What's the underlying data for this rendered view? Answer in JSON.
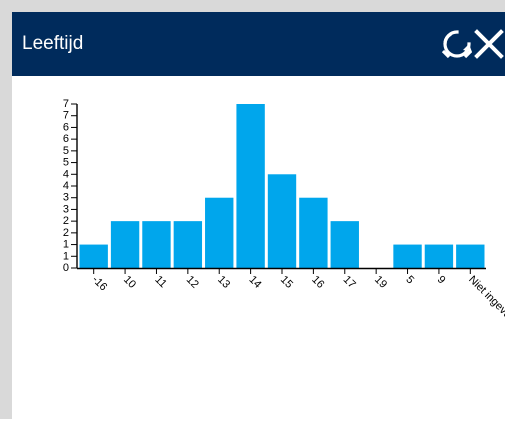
{
  "window": {
    "title": "Leeftijd",
    "accent": "#002b5c",
    "actions": [
      {
        "icon": "refresh-icon"
      },
      {
        "icon": "close-icon"
      }
    ]
  },
  "chart_data": {
    "type": "bar",
    "title": "",
    "xlabel": "",
    "ylabel": "",
    "categories": [
      "-16",
      "10",
      "11",
      "12",
      "13",
      "14",
      "15",
      "16",
      "17",
      "19",
      "5",
      "9",
      "Niet ingevuld"
    ],
    "values": [
      1,
      2,
      2,
      2,
      3,
      7,
      4,
      3,
      2,
      0,
      1,
      1,
      1
    ],
    "ylim": [
      0,
      7
    ],
    "yticks": [
      "0",
      "1",
      "1",
      "2",
      "2",
      "3",
      "3",
      "4",
      "4",
      "5",
      "5",
      "6",
      "6",
      "7",
      "7"
    ],
    "bar_color": "#00a6ec",
    "grid": false
  }
}
